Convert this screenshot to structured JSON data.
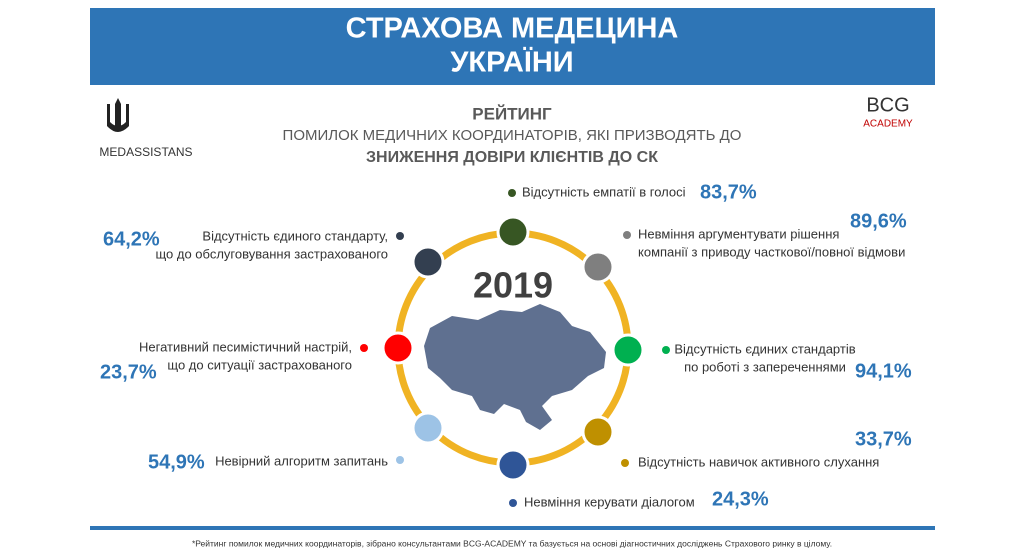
{
  "header": {
    "title_lines": [
      "СТРАХОВА МЕДЕЦИНА",
      "УКРАЇНИ"
    ]
  },
  "logos": {
    "left": "MEDASSISTANS",
    "right_top": "BCG",
    "right_bottom": "ACADEMY"
  },
  "subtitle": {
    "line1": "РЕЙТИНГ",
    "line2": "ПОМИЛОК МЕДИЧНИХ КООРДИНАТОРІВ, ЯКІ ПРИЗВОДЯТЬ ДО",
    "line3": "ЗНИЖЕННЯ ДОВІРИ КЛІЄНТІВ ДО СК"
  },
  "year": "2019",
  "items": [
    {
      "label_lines": [
        "Відсутність емпатії в голосі"
      ],
      "value": "83,7%",
      "color": "#375623"
    },
    {
      "label_lines": [
        "Невміння аргументувати рішення",
        "компанії з приводу часткової/повної відмови"
      ],
      "value": "89,6%",
      "color": "#7f7f7f"
    },
    {
      "label_lines": [
        "Відсутність єдиних стандартів",
        "по роботі з запереченнями"
      ],
      "value": "94,1%",
      "color": "#00b050"
    },
    {
      "label_lines": [
        "Відсутність навичок активного слухання"
      ],
      "value": "33,7%",
      "color": "#bf9000"
    },
    {
      "label_lines": [
        "Невміння керувати діалогом"
      ],
      "value": "24,3%",
      "color": "#2f5597"
    },
    {
      "label_lines": [
        "Невірний алгоритм запитань"
      ],
      "value": "54,9%",
      "color": "#9dc3e6"
    },
    {
      "label_lines": [
        "Негативний песимістичний настрій,",
        "що до ситуації застрахованого"
      ],
      "value": "23,7%",
      "color": "#ff0000"
    },
    {
      "label_lines": [
        "Відсутність єдиного стандарту,",
        "що до обслуговування застрахованого"
      ],
      "value": "64,2%",
      "color": "#333f50"
    }
  ],
  "footnote": "*Рейтинг помилок медичних координаторів, зібрано консультантами BCG-ACADEMY та базується на основі діагностичних досліджень Страхового ринку в цілому."
}
